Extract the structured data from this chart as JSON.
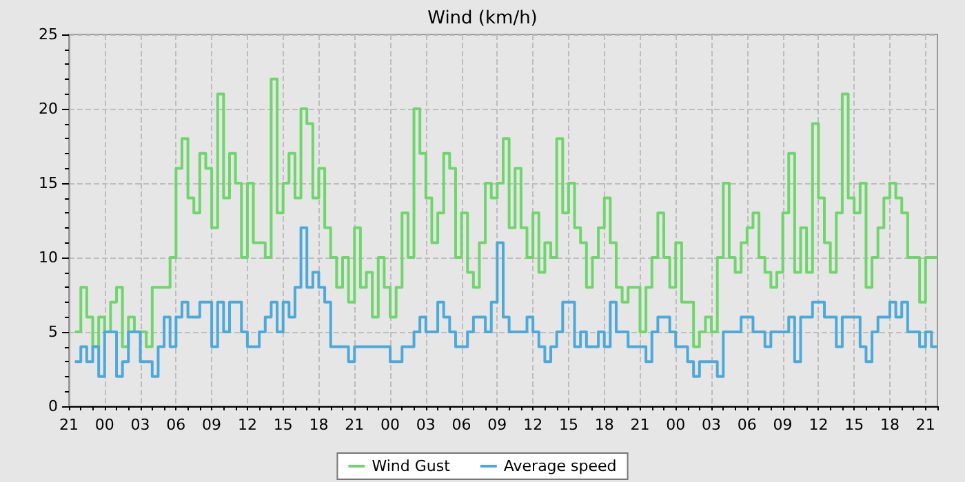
{
  "chart_data": {
    "type": "step",
    "title": "Wind (km/h)",
    "categories": [
      "21",
      null,
      null,
      null,
      null,
      null,
      "00",
      null,
      null,
      null,
      null,
      null,
      "03",
      null,
      null,
      null,
      null,
      null,
      "06",
      null,
      null,
      null,
      null,
      null,
      "09",
      null,
      null,
      null,
      null,
      null,
      "12",
      null,
      null,
      null,
      null,
      null,
      "15",
      null,
      null,
      null,
      null,
      null,
      "18",
      null,
      null,
      null,
      null,
      null,
      "21",
      null,
      null,
      null,
      null,
      null,
      "00",
      null,
      null,
      null,
      null,
      null,
      "03",
      null,
      null,
      null,
      null,
      null,
      "06",
      null,
      null,
      null,
      null,
      null,
      "09",
      null,
      null,
      null,
      null,
      null,
      "12",
      null,
      null,
      null,
      null,
      null,
      "15",
      null,
      null,
      null,
      null,
      null,
      "18",
      null,
      null,
      null,
      null,
      null,
      "21",
      null,
      null,
      null,
      null,
      null,
      "00",
      null,
      null,
      null,
      null,
      null,
      "03",
      null,
      null,
      null,
      null,
      null,
      "06",
      null,
      null,
      null,
      null,
      null,
      "09",
      null,
      null,
      null,
      null,
      null,
      "12",
      null,
      null,
      null,
      null,
      null,
      "15",
      null,
      null,
      null,
      null,
      null,
      "18",
      null,
      null,
      null,
      null,
      null,
      "21",
      null,
      null
    ],
    "ylim": [
      0,
      25
    ],
    "yticks": [
      0,
      5,
      10,
      15,
      20,
      25
    ],
    "grid": true,
    "legend": "bottom",
    "marker": "none",
    "line_style": "solid",
    "series": [
      {
        "name": "Wind Gust",
        "color": "#6fd66b",
        "values": [
          null,
          5,
          8,
          6,
          4,
          6,
          5,
          7,
          8,
          4,
          6,
          5,
          5,
          4,
          8,
          8,
          8,
          10,
          16,
          18,
          14,
          13,
          17,
          16,
          12,
          21,
          14,
          17,
          15,
          10,
          15,
          11,
          11,
          10,
          22,
          13,
          15,
          17,
          14,
          20,
          19,
          14,
          16,
          12,
          10,
          8,
          10,
          7,
          12,
          8,
          9,
          6,
          10,
          8,
          6,
          8,
          13,
          10,
          20,
          17,
          14,
          11,
          13,
          17,
          16,
          10,
          13,
          9,
          8,
          11,
          15,
          14,
          15,
          18,
          12,
          16,
          12,
          10,
          13,
          9,
          11,
          10,
          18,
          13,
          15,
          12,
          11,
          8,
          10,
          12,
          14,
          11,
          8,
          7,
          8,
          8,
          5,
          8,
          10,
          13,
          10,
          8,
          11,
          7,
          7,
          4,
          5,
          6,
          5,
          10,
          15,
          10,
          9,
          11,
          12,
          13,
          10,
          9,
          8,
          9,
          13,
          17,
          9,
          12,
          9,
          19,
          14,
          11,
          9,
          13,
          21,
          14,
          13,
          15,
          8,
          10,
          12,
          14,
          15,
          14,
          13,
          10,
          10,
          7,
          10,
          10,
          10
        ]
      },
      {
        "name": "Average speed",
        "color": "#4ea9db",
        "values": [
          null,
          3,
          4,
          3,
          4,
          2,
          5,
          5,
          2,
          3,
          5,
          5,
          3,
          3,
          2,
          4,
          6,
          4,
          6,
          7,
          6,
          6,
          7,
          7,
          4,
          7,
          5,
          7,
          7,
          5,
          4,
          4,
          5,
          6,
          7,
          5,
          7,
          6,
          8,
          12,
          8,
          9,
          8,
          7,
          4,
          4,
          4,
          3,
          4,
          4,
          4,
          4,
          4,
          4,
          3,
          3,
          4,
          4,
          5,
          6,
          5,
          5,
          7,
          6,
          5,
          4,
          4,
          5,
          6,
          6,
          5,
          7,
          11,
          6,
          5,
          5,
          5,
          6,
          5,
          4,
          3,
          4,
          5,
          7,
          7,
          4,
          5,
          4,
          4,
          5,
          4,
          7,
          5,
          5,
          4,
          4,
          4,
          3,
          5,
          6,
          6,
          5,
          4,
          4,
          3,
          2,
          3,
          3,
          3,
          2,
          5,
          5,
          5,
          6,
          6,
          5,
          5,
          4,
          5,
          5,
          5,
          6,
          3,
          6,
          6,
          7,
          7,
          6,
          6,
          4,
          6,
          6,
          6,
          4,
          3,
          5,
          6,
          6,
          7,
          6,
          7,
          5,
          5,
          4,
          5,
          4,
          4
        ]
      }
    ]
  }
}
